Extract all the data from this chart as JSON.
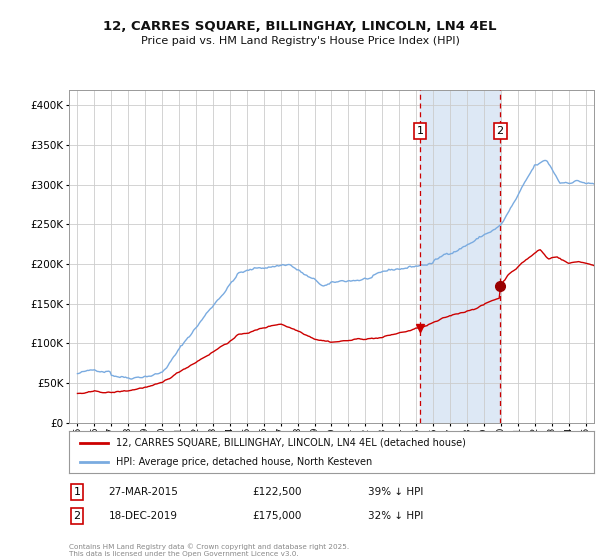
{
  "title_line1": "12, CARRES SQUARE, BILLINGHAY, LINCOLN, LN4 4EL",
  "title_line2": "Price paid vs. HM Land Registry's House Price Index (HPI)",
  "red_label": "12, CARRES SQUARE, BILLINGHAY, LINCOLN, LN4 4EL (detached house)",
  "blue_label": "HPI: Average price, detached house, North Kesteven",
  "event1_date": "27-MAR-2015",
  "event1_price": 122500,
  "event1_hpi": "39% ↓ HPI",
  "event2_date": "18-DEC-2019",
  "event2_price": 175000,
  "event2_hpi": "32% ↓ HPI",
  "event1_x": 2015.23,
  "event2_x": 2019.96,
  "ylim_min": 0,
  "ylim_max": 420000,
  "xlim_min": 1994.5,
  "xlim_max": 2025.5,
  "background_color": "#ffffff",
  "plot_bg_color": "#ffffff",
  "grid_color": "#cccccc",
  "red_color": "#cc0000",
  "blue_color": "#7aabe0",
  "highlight_color": "#dde8f5",
  "footer_text": "Contains HM Land Registry data © Crown copyright and database right 2025.\nThis data is licensed under the Open Government Licence v3.0."
}
